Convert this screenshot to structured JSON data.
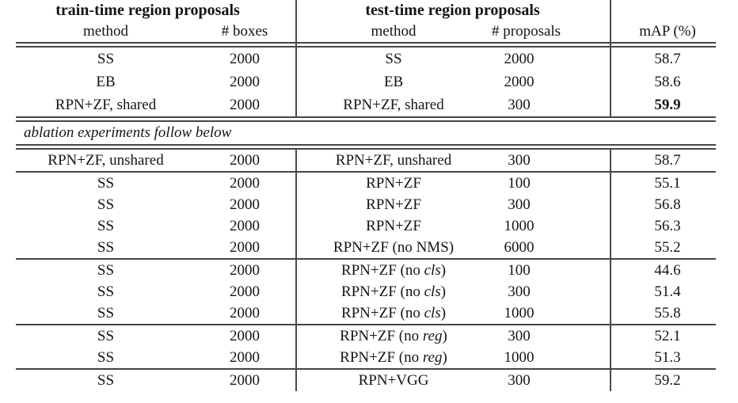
{
  "meta": {
    "background": "#ffffff",
    "text_color": "#151515",
    "rule_color": "#454545",
    "best_map_bold": "59.9"
  },
  "table": {
    "headers": {
      "group_train": "train-time region proposals",
      "group_test": "test-time region proposals",
      "method_train": "method",
      "boxes": "# boxes",
      "method_test": "method",
      "proposals": "# proposals",
      "map": "mAP (%)"
    },
    "ablation_note": "ablation experiments follow below",
    "pre_ablation": {
      "rows": [
        {
          "train_method": "SS",
          "train_boxes": "2000",
          "test_method": "SS",
          "test_proposals": "2000",
          "map": "58.7",
          "map_bold": false
        },
        {
          "train_method": "EB",
          "train_boxes": "2000",
          "test_method": "EB",
          "test_proposals": "2000",
          "map": "58.6",
          "map_bold": false
        },
        {
          "train_method": "RPN+ZF, shared",
          "train_boxes": "2000",
          "test_method": "RPN+ZF, shared",
          "test_proposals": "300",
          "map": "59.9",
          "map_bold": true
        }
      ]
    },
    "post_ablation_groups": [
      {
        "rows": [
          {
            "train_method": "RPN+ZF, unshared",
            "train_boxes": "2000",
            "test_method": "RPN+ZF, unshared",
            "test_proposals": "300",
            "map": "58.7",
            "map_bold": false
          }
        ]
      },
      {
        "rows": [
          {
            "train_method": "SS",
            "train_boxes": "2000",
            "test_method": "RPN+ZF",
            "test_proposals": "100",
            "map": "55.1",
            "map_bold": false
          },
          {
            "train_method": "SS",
            "train_boxes": "2000",
            "test_method": "RPN+ZF",
            "test_proposals": "300",
            "map": "56.8",
            "map_bold": false
          },
          {
            "train_method": "SS",
            "train_boxes": "2000",
            "test_method": "RPN+ZF",
            "test_proposals": "1000",
            "map": "56.3",
            "map_bold": false
          },
          {
            "train_method": "SS",
            "train_boxes": "2000",
            "test_method": "RPN+ZF (no NMS)",
            "test_proposals": "6000",
            "map": "55.2",
            "map_bold": false
          }
        ]
      },
      {
        "rows": [
          {
            "train_method": "SS",
            "train_boxes": "2000",
            "test_method": "RPN+ZF (no *cls*)",
            "test_proposals": "100",
            "map": "44.6",
            "map_bold": false
          },
          {
            "train_method": "SS",
            "train_boxes": "2000",
            "test_method": "RPN+ZF (no *cls*)",
            "test_proposals": "300",
            "map": "51.4",
            "map_bold": false
          },
          {
            "train_method": "SS",
            "train_boxes": "2000",
            "test_method": "RPN+ZF (no *cls*)",
            "test_proposals": "1000",
            "map": "55.8",
            "map_bold": false
          }
        ]
      },
      {
        "rows": [
          {
            "train_method": "SS",
            "train_boxes": "2000",
            "test_method": "RPN+ZF (no *reg*)",
            "test_proposals": "300",
            "map": "52.1",
            "map_bold": false
          },
          {
            "train_method": "SS",
            "train_boxes": "2000",
            "test_method": "RPN+ZF (no *reg*)",
            "test_proposals": "1000",
            "map": "51.3",
            "map_bold": false
          }
        ]
      },
      {
        "rows": [
          {
            "train_method": "SS",
            "train_boxes": "2000",
            "test_method": "RPN+VGG",
            "test_proposals": "300",
            "map": "59.2",
            "map_bold": false
          }
        ]
      }
    ]
  }
}
